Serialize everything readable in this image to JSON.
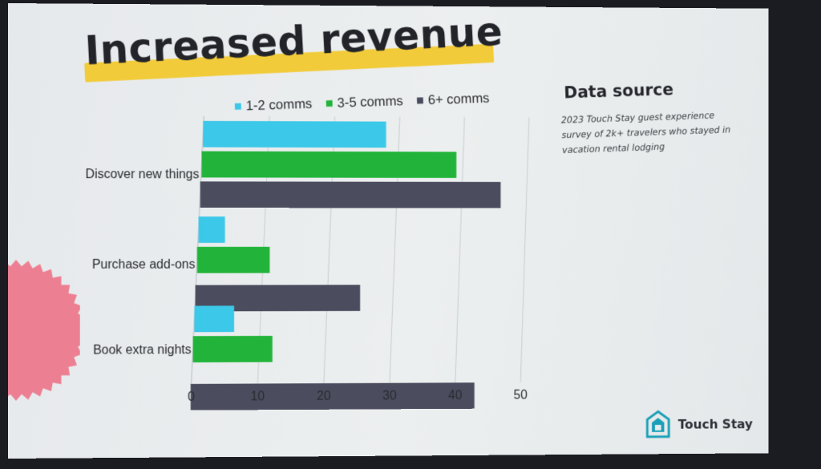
{
  "slide": {
    "title": "Increased revenue",
    "data_source_title": "Data source",
    "data_source_text": "2023 Touch Stay guest experience survey of 2k+ travelers who stayed in vacation rental lodging",
    "logo_text": "Touch Stay"
  },
  "colors": {
    "series_1": "#3cc8e8",
    "series_2": "#22b43a",
    "series_3": "#4b4c5e",
    "highlight": "#f2cb3a",
    "badge": "#ec7f92",
    "logo": "#1aa0b8"
  },
  "chart_data": {
    "type": "bar",
    "orientation": "horizontal",
    "categories": [
      "Discover new things",
      "Purchase add-ons",
      "Book extra nights"
    ],
    "series": [
      {
        "name": "1-2 comms",
        "values": [
          28,
          4,
          6
        ]
      },
      {
        "name": "3-5 comms",
        "values": [
          39,
          11,
          12
        ]
      },
      {
        "name": "6+ comms",
        "values": [
          46,
          25,
          43
        ]
      }
    ],
    "xlim": [
      0,
      50
    ],
    "xticks": [
      "0",
      "10",
      "20",
      "30",
      "40",
      "50"
    ],
    "grid": true,
    "legend": "top"
  }
}
